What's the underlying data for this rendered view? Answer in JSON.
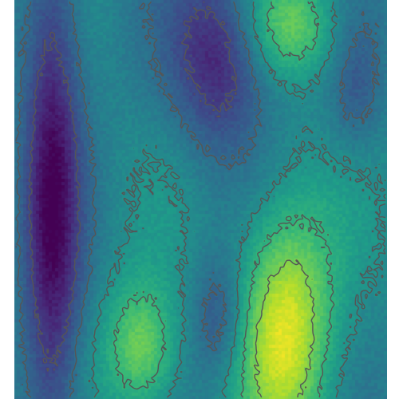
{
  "chart_data": {
    "type": "heatmap",
    "title": "",
    "xlabel": "",
    "ylabel": "",
    "colormap": "viridis",
    "contour_color": "#555555",
    "grid": false,
    "legend": "none",
    "contour_levels": [
      0.2,
      0.35,
      0.5,
      0.65,
      0.8
    ],
    "features": [
      {
        "kind": "ridge",
        "x": 0.1,
        "y": 0.5,
        "sx": 0.055,
        "sy": 0.55,
        "value": 0.05
      },
      {
        "kind": "trough",
        "x": 0.55,
        "y": 0.14,
        "sx": 0.09,
        "sy": 0.16,
        "value": 0.1
      },
      {
        "kind": "peak",
        "x": 0.73,
        "y": 0.82,
        "sx": 0.09,
        "sy": 0.22,
        "value": 0.95
      },
      {
        "kind": "peak",
        "x": 0.34,
        "y": 0.88,
        "sx": 0.07,
        "sy": 0.12,
        "value": 0.8
      },
      {
        "kind": "peak",
        "x": 0.75,
        "y": 0.06,
        "sx": 0.09,
        "sy": 0.09,
        "value": 0.75
      },
      {
        "kind": "trough",
        "x": 0.55,
        "y": 0.8,
        "sx": 0.05,
        "sy": 0.11,
        "value": 0.25
      },
      {
        "kind": "trough",
        "x": 0.92,
        "y": 0.22,
        "sx": 0.05,
        "sy": 0.12,
        "value": 0.3
      }
    ]
  }
}
